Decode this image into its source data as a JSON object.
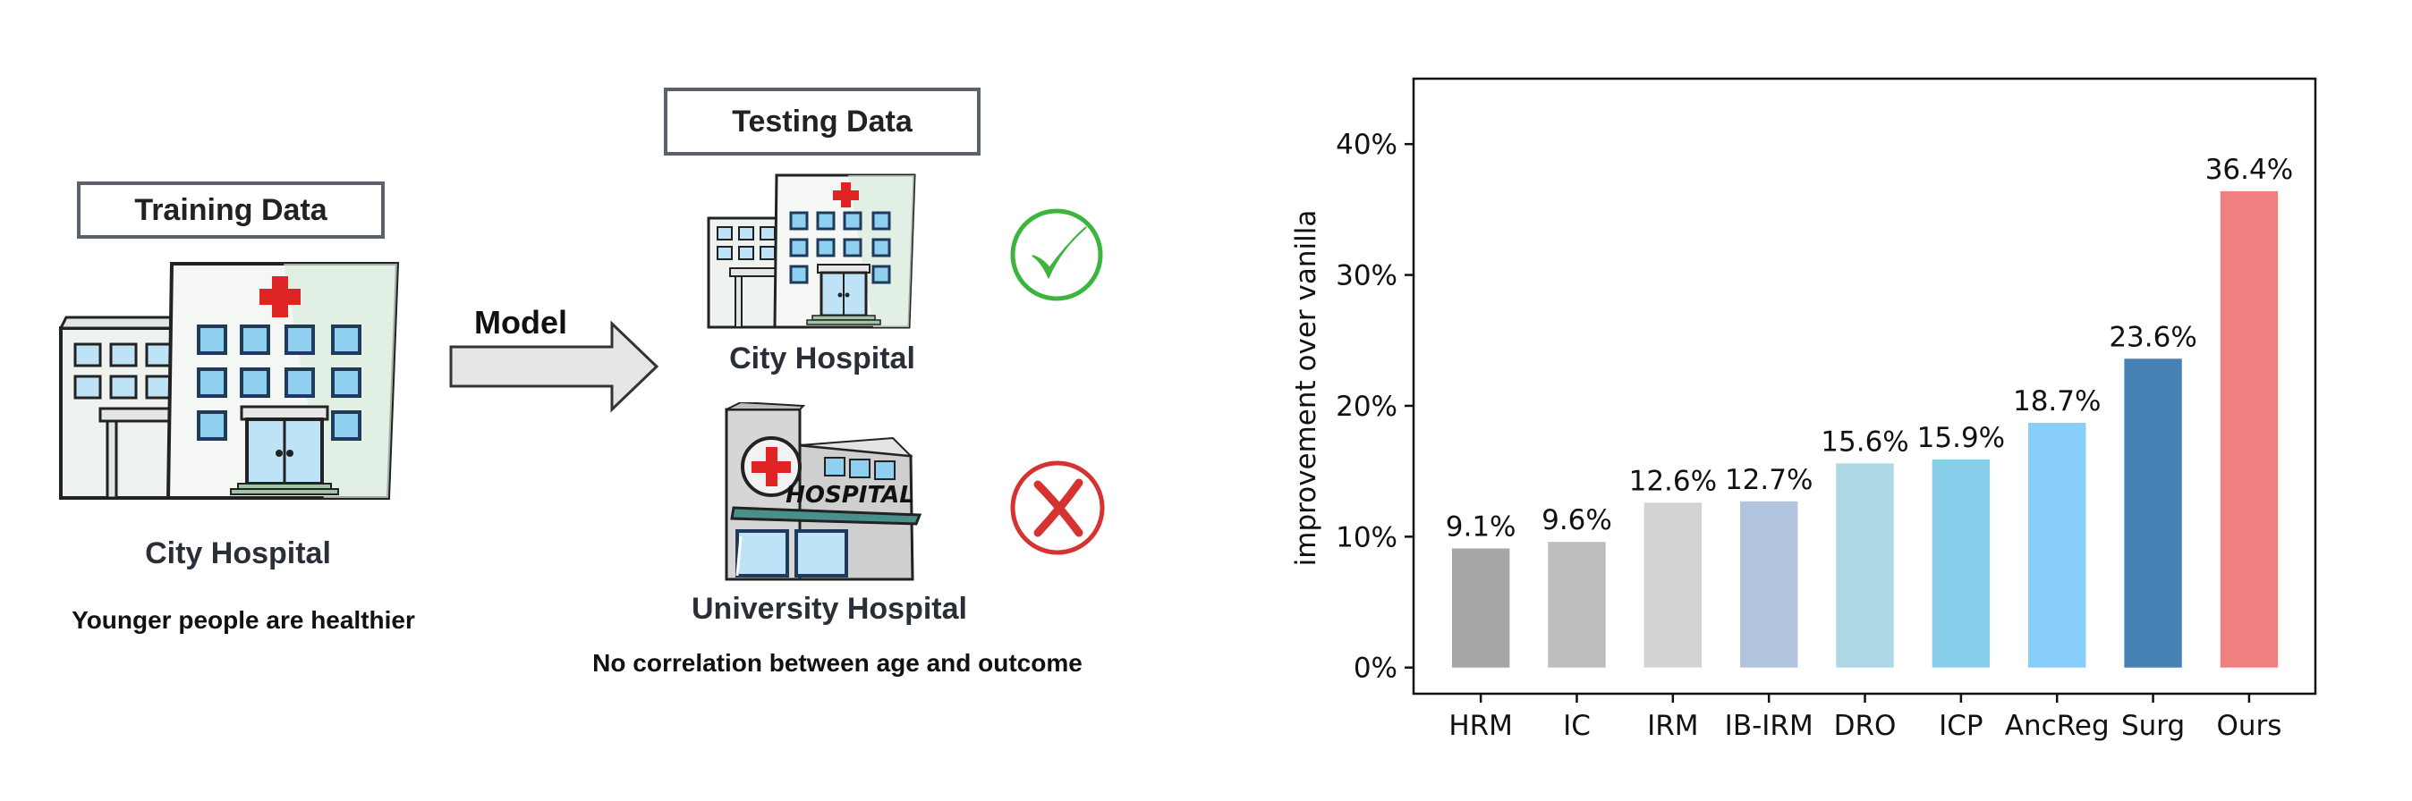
{
  "left": {
    "training_label": "Training Data",
    "testing_label": "Testing Data",
    "model_label": "Model",
    "train_hospital_name": "City Hospital",
    "train_note": "Younger people are healthier",
    "test_hospital_1_name": "City Hospital",
    "test_hospital_2_name": "University Hospital",
    "test_hospital_2_sign": "HOSPITAL",
    "test_note": "No correlation between age and outcome",
    "check_color": "#3db53d",
    "cross_color": "#d63232"
  },
  "chart_data": {
    "type": "bar",
    "categories": [
      "HRM",
      "IC",
      "IRM",
      "IB-IRM",
      "DRO",
      "ICP",
      "AncReg",
      "Surg",
      "Ours"
    ],
    "values": [
      9.1,
      9.6,
      12.6,
      12.7,
      15.6,
      15.9,
      18.7,
      23.6,
      36.4
    ],
    "value_labels": [
      "9.1%",
      "9.6%",
      "12.6%",
      "12.7%",
      "15.6%",
      "15.9%",
      "18.7%",
      "23.6%",
      "36.4%"
    ],
    "colors": [
      "#a6a6a6",
      "#bdbdbd",
      "#d3d3d3",
      "#b0c4de",
      "#add8e6",
      "#87ceeb",
      "#87cefa",
      "#4682b4",
      "#f08080"
    ],
    "ylabel": "improvement over vanilla",
    "yticks": [
      "0%",
      "10%",
      "20%",
      "30%",
      "40%"
    ],
    "ytick_values": [
      0,
      10,
      20,
      30,
      40
    ],
    "ylim": [
      -2,
      45
    ],
    "grid": false
  }
}
